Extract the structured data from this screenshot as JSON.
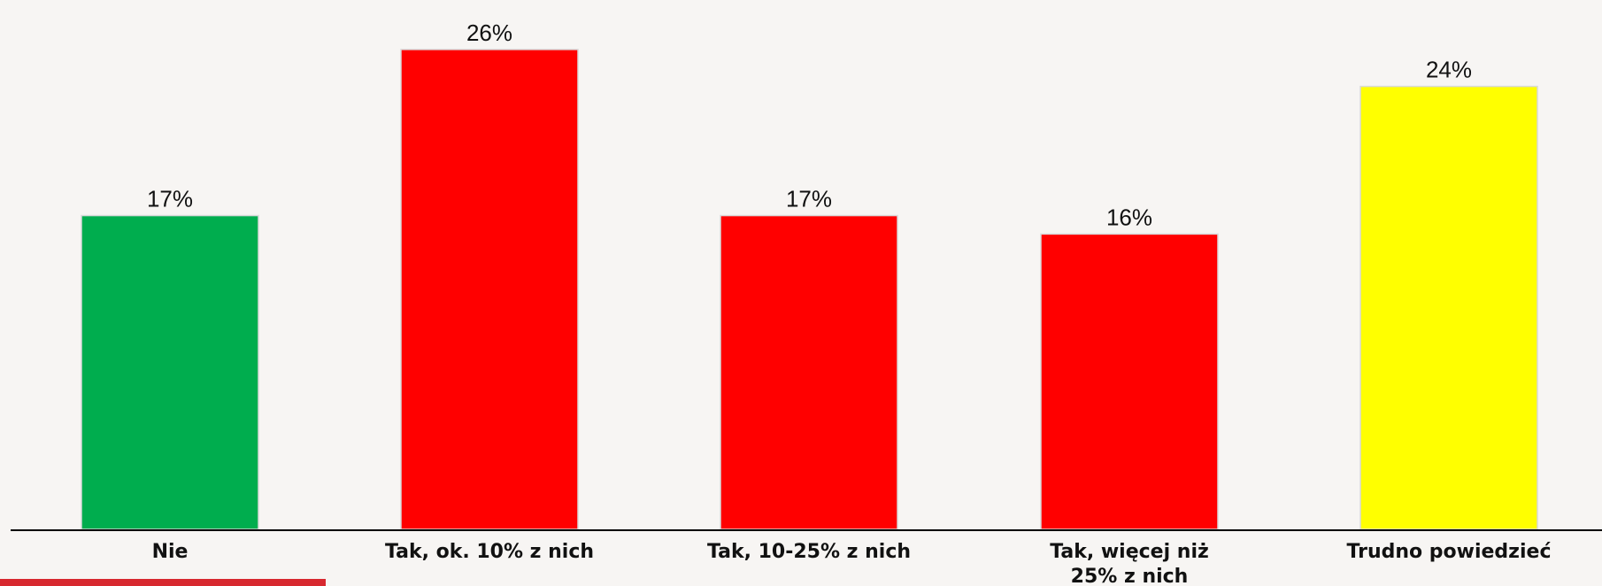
{
  "chart_data": {
    "type": "bar",
    "categories": [
      [
        "Nie"
      ],
      [
        "Tak, ok. 10% z nich"
      ],
      [
        "Tak, 10-25% z nich"
      ],
      [
        "Tak, więcej niż",
        "25% z nich"
      ],
      [
        "Trudno powiedzieć"
      ]
    ],
    "values": [
      17,
      26,
      17,
      16,
      24
    ],
    "value_labels": [
      "17%",
      "26%",
      "17%",
      "16%",
      "24%"
    ],
    "bar_colors": [
      "#00ad4e",
      "#ff0000",
      "#ff0000",
      "#ff0000",
      "#ffff00"
    ],
    "ylim": [
      0,
      28
    ],
    "grid": false,
    "legend": "none"
  },
  "colors": {
    "background": "#f7f5f3",
    "axis": "#000000",
    "footer_accent": "#d7282f"
  }
}
